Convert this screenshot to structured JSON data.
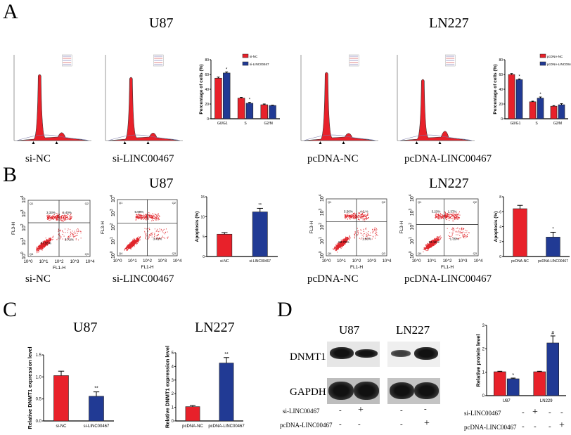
{
  "panels": {
    "a": "A",
    "b": "B",
    "c": "C",
    "d": "D"
  },
  "cell_lines": {
    "u87": "U87",
    "ln227": "LN227"
  },
  "conditions": {
    "si_nc": "si-NC",
    "si_linc": "si-LINC00467",
    "pcdna_nc": "pcDNA-NC",
    "pcdna_linc": "pcDNA-LINC00467"
  },
  "flow": {
    "x_label": "FL1-H",
    "y_label": "FL3-H",
    "ticks": [
      "10^0",
      "10^1",
      "10^2",
      "10^3",
      "10^4"
    ],
    "quadrants": [
      "Q1",
      "Q2",
      "Q3",
      "Q4"
    ],
    "plots": [
      {
        "q1": "3.33%",
        "q2": "5.40%",
        "q3": "3.72%",
        "q4": "87.55%"
      },
      {
        "q1": "6.99%",
        "q2": "",
        "q3": "3.41%",
        "q4": ""
      },
      {
        "q1": "5.50%",
        "q2": "4.2 %",
        "q3": "1.90%",
        "q4": "88.70%"
      },
      {
        "q1": "3.23%",
        "q2": "1.37%",
        "q3": "1.35%",
        "q4": "94.11%"
      }
    ]
  },
  "western": {
    "proteins": [
      "DNMT1",
      "GAPDH"
    ],
    "rows": [
      {
        "label": "si-LINC00467",
        "signs": [
          "-",
          "+",
          "-",
          "-"
        ]
      },
      {
        "label": "pcDNA-LINC00467",
        "signs": [
          "-",
          "-",
          "-",
          "+"
        ]
      }
    ]
  },
  "colors": {
    "red": "#e8212a",
    "blue": "#213a94"
  },
  "chart_data": [
    {
      "id": "a_u87",
      "type": "bar",
      "categories": [
        "G0/G1",
        "S",
        "G2/M"
      ],
      "series": [
        {
          "name": "si-NC",
          "values": [
            55,
            28,
            19
          ],
          "errors": [
            1.5,
            1,
            1
          ]
        },
        {
          "name": "si-LINC00467",
          "values": [
            62,
            21,
            18
          ],
          "errors": [
            1.5,
            1.2,
            0.5
          ]
        }
      ],
      "significance": [
        "*",
        "*",
        ""
      ],
      "ylabel": "Percentage of cells (%)",
      "ylim": [
        0,
        80
      ],
      "yticks": [
        0,
        20,
        40,
        60,
        80
      ],
      "legend": "top-right"
    },
    {
      "id": "a_ln227",
      "type": "bar",
      "categories": [
        "G0/G1",
        "S",
        "G2/M"
      ],
      "series": [
        {
          "name": "pcDNA-NC",
          "values": [
            60,
            23,
            17
          ],
          "errors": [
            1.2,
            0.8,
            0.8
          ]
        },
        {
          "name": "pcDNA-LINC00467",
          "values": [
            53,
            28,
            19
          ],
          "errors": [
            1,
            1.5,
            1.5
          ]
        }
      ],
      "significance": [
        "*",
        "*",
        ""
      ],
      "ylabel": "Percentage of cells (%)",
      "ylim": [
        0,
        80
      ],
      "yticks": [
        0,
        20,
        40,
        60,
        80
      ],
      "legend": "top-right"
    },
    {
      "id": "b_u87",
      "type": "bar",
      "categories": [
        "si-NC",
        "si-LINC00467"
      ],
      "values": [
        5.6,
        11.2
      ],
      "errors": [
        0.4,
        0.9
      ],
      "significance": [
        "",
        "**"
      ],
      "ylabel": "Apoptosis (%)",
      "ylim": [
        0,
        15
      ],
      "yticks": [
        0,
        5,
        10,
        15
      ]
    },
    {
      "id": "b_ln227",
      "type": "bar",
      "categories": [
        "pcDNA-NC",
        "pcDNA-LINC00467"
      ],
      "values": [
        6.4,
        2.6
      ],
      "errors": [
        0.45,
        0.65
      ],
      "significance": [
        "",
        "*"
      ],
      "ylabel": "Apoptosis (%)",
      "ylim": [
        0,
        8
      ],
      "yticks": [
        0,
        2,
        4,
        6,
        8
      ]
    },
    {
      "id": "c_u87",
      "type": "bar",
      "categories": [
        "si-NC",
        "si-LINC00467"
      ],
      "values": [
        1.03,
        0.56
      ],
      "errors": [
        0.1,
        0.1
      ],
      "significance": [
        "",
        "**"
      ],
      "ylabel": "Relative DNMT1 expression level",
      "ylim": [
        0,
        1.5
      ],
      "yticks": [
        0.0,
        0.5,
        1.0,
        1.5
      ],
      "ytick_labels": [
        "0.0",
        "0.5",
        "1.0",
        "1.5"
      ]
    },
    {
      "id": "c_ln227",
      "type": "bar",
      "categories": [
        "pcDNA-NC",
        "pcDNA-LINC00467"
      ],
      "values": [
        1.05,
        4.25
      ],
      "errors": [
        0.08,
        0.4
      ],
      "significance": [
        "",
        "**"
      ],
      "ylabel": "Relative DNMT1 expression level",
      "ylim": [
        0,
        5
      ],
      "yticks": [
        0,
        1,
        2,
        3,
        4,
        5
      ]
    },
    {
      "id": "d_protein",
      "type": "bar",
      "categories": [
        "U87",
        "LN229"
      ],
      "series": [
        {
          "values": [
            1.02,
            1.02
          ],
          "errors": [
            0.02,
            0.02
          ]
        },
        {
          "values": [
            0.72,
            2.25
          ],
          "errors": [
            0.03,
            0.3
          ]
        }
      ],
      "significance": [
        "*",
        "#"
      ],
      "ylabel": "Relative protein level",
      "ylim": [
        0,
        3
      ],
      "yticks": [
        0,
        1,
        2,
        3
      ]
    }
  ]
}
